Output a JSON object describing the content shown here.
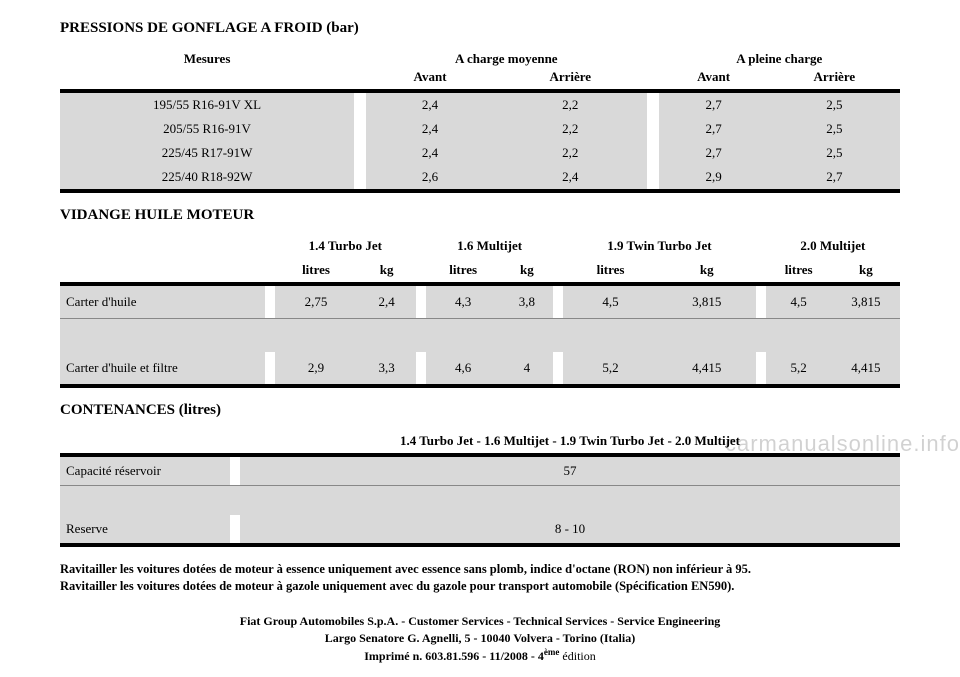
{
  "section1": {
    "title": "PRESSIONS DE GONFLAGE A FROID (bar)",
    "headers": {
      "tyres": "Mesures",
      "mid": "A charge moyenne",
      "full": "A pleine charge",
      "front": "Avant",
      "rear": "Arrière"
    },
    "rows": [
      {
        "tyre": "195/55 R16-91V XL",
        "mf": "2,4",
        "mr": "2,2",
        "ff": "2,7",
        "fr": "2,5"
      },
      {
        "tyre": "205/55 R16-91V",
        "mf": "2,4",
        "mr": "2,2",
        "ff": "2,7",
        "fr": "2,5"
      },
      {
        "tyre": "225/45 R17-91W",
        "mf": "2,4",
        "mr": "2,2",
        "ff": "2,7",
        "fr": "2,5"
      },
      {
        "tyre": "225/40 R18-92W",
        "mf": "2,6",
        "mr": "2,4",
        "ff": "2,9",
        "fr": "2,7"
      }
    ]
  },
  "section2": {
    "title": "VIDANGE HUILE MOTEUR",
    "engines": [
      "1.4 Turbo Jet",
      "1.6 Multijet",
      "1.9 Twin Turbo Jet",
      "2.0 Multijet"
    ],
    "sub": {
      "l": "litres",
      "kg": "kg"
    },
    "rows": [
      {
        "label": "Carter d'huile",
        "v": [
          "2,75",
          "2,4",
          "4,3",
          "3,8",
          "4,5",
          "3,815",
          "4,5",
          "3,815"
        ]
      },
      {
        "label": "Carter d'huile et filtre",
        "v": [
          "2,9",
          "3,3",
          "4,6",
          "4",
          "5,2",
          "4,415",
          "5,2",
          "4,415"
        ]
      }
    ]
  },
  "section3": {
    "title": "CONTENANCES (litres)",
    "header": "1.4 Turbo Jet - 1.6 Multijet - 1.9 Twin Turbo Jet - 2.0 Multijet",
    "rows": [
      {
        "label": "Capacité réservoir",
        "val": "57"
      },
      {
        "label": "Reserve",
        "val": "8 - 10"
      }
    ]
  },
  "note": {
    "l1": "Ravitailler les voitures dotées de moteur à essence uniquement avec essence sans plomb, indice d'octane (RON) non inférieur à 95.",
    "l2": "Ravitailler les voitures dotées de moteur à gazole uniquement avec du gazole pour transport automobile (Spécification EN590)."
  },
  "footer": {
    "l1": "Fiat Group Automobiles S.p.A. - Customer Services - Technical Services - Service Engineering",
    "l2": "Largo Senatore G. Agnelli, 5 - 10040 Volvera - Torino (Italia)",
    "l3a": "Imprimé n. 603.81.596 - 11/2008 - 4",
    "l3b": " édition",
    "sup": "ème"
  },
  "watermark": "carmanualsonline.info"
}
